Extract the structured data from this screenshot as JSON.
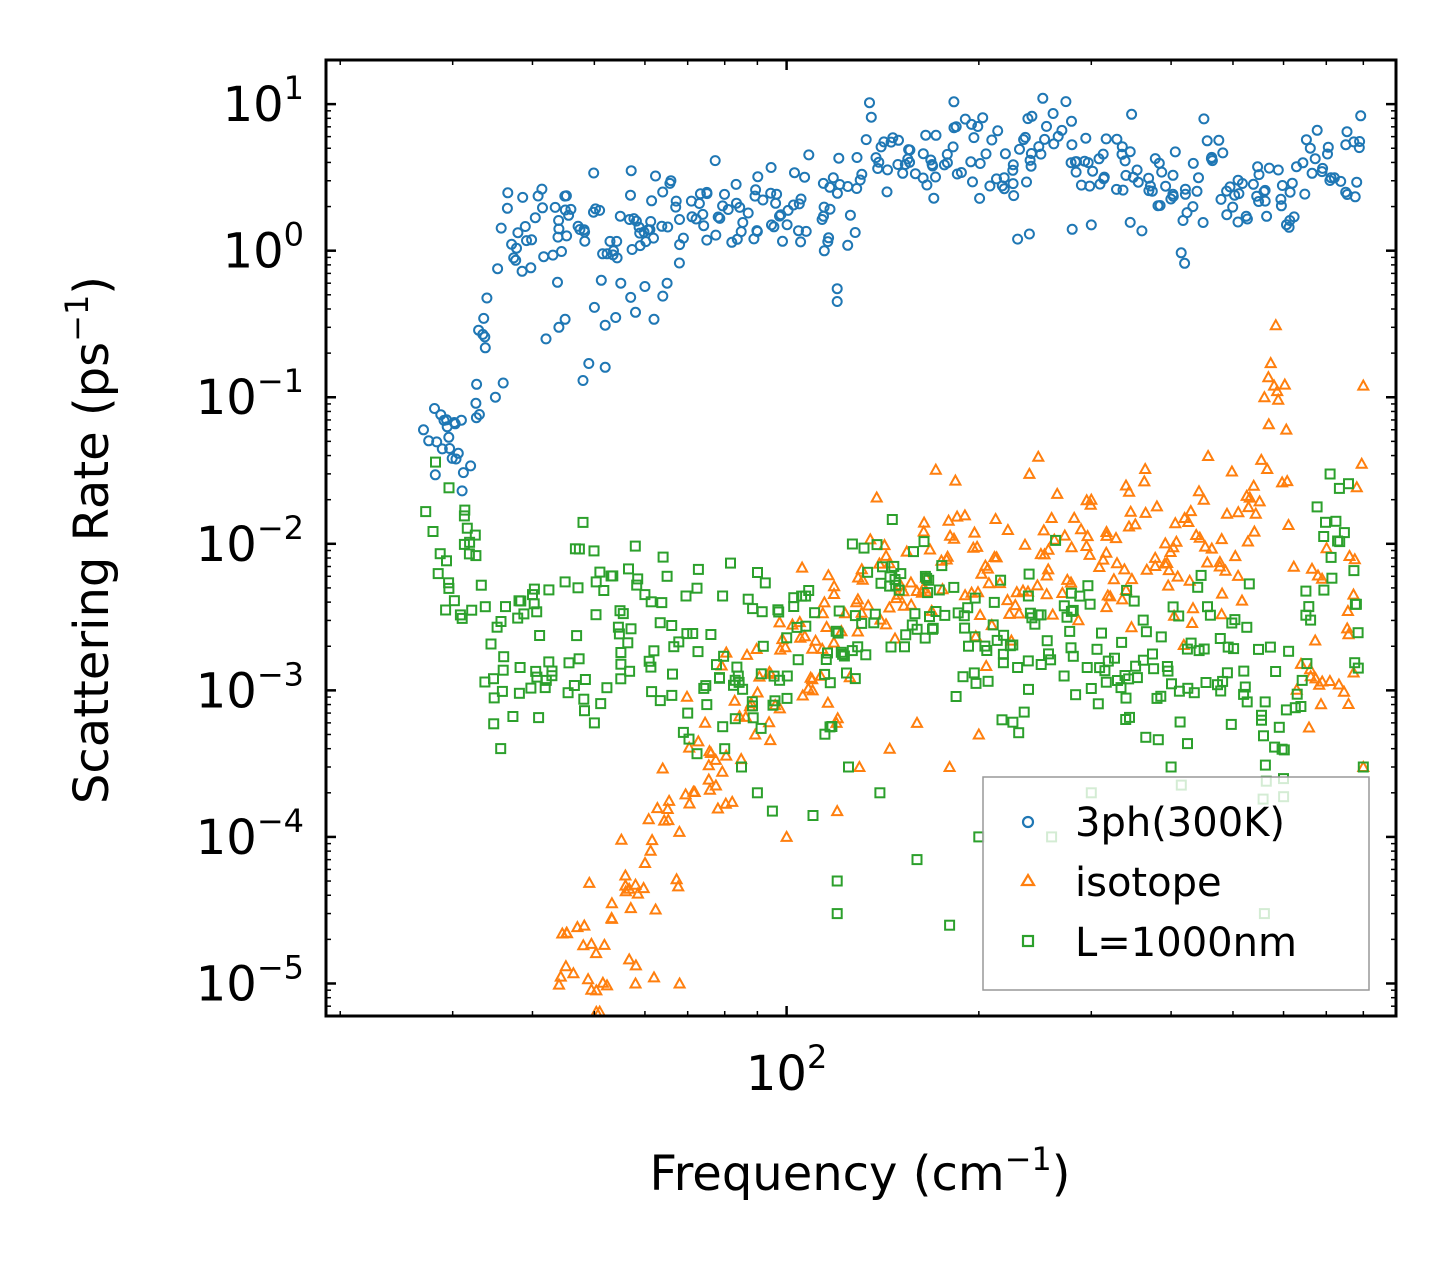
{
  "chart_data": {
    "type": "scatter",
    "xscale": "log",
    "yscale": "log",
    "xlim": [
      19,
      900
    ],
    "ylim": [
      6e-06,
      20
    ],
    "xlabel": "Frequency (cm",
    "xlabel_sup": "−1",
    "xlabel_end": ")",
    "ylabel": "Scattering Rate (ps",
    "ylabel_sup": "−1",
    "ylabel_end": ")",
    "x_major_ticks": [
      {
        "value": 100,
        "base": "10",
        "exp": "2"
      }
    ],
    "y_major_ticks": [
      {
        "value": 10,
        "base": "10",
        "exp": "1"
      },
      {
        "value": 1,
        "base": "10",
        "exp": "0"
      },
      {
        "value": 0.1,
        "base": "10",
        "exp": "−1"
      },
      {
        "value": 0.01,
        "base": "10",
        "exp": "−2"
      },
      {
        "value": 0.001,
        "base": "10",
        "exp": "−3"
      },
      {
        "value": 0.0001,
        "base": "10",
        "exp": "−4"
      },
      {
        "value": 1e-05,
        "base": "10",
        "exp": "−5"
      }
    ],
    "legend_position": "lower-right",
    "series": [
      {
        "name": "3ph(300K)",
        "marker": "circle",
        "color": "#1f77b4",
        "keypoints": [
          [
            27,
            0.058
          ],
          [
            32,
            0.04
          ],
          [
            35,
            1.3
          ],
          [
            38,
            1.3
          ],
          [
            40,
            1.35
          ],
          [
            45,
            1.4
          ],
          [
            50,
            1.45
          ],
          [
            55,
            1.55
          ],
          [
            60,
            1.6
          ],
          [
            65,
            1.75
          ],
          [
            70,
            1.8
          ],
          [
            75,
            1.75
          ],
          [
            80,
            1.7
          ],
          [
            85,
            1.6
          ],
          [
            90,
            1.8
          ],
          [
            95,
            2.0
          ],
          [
            100,
            2.3
          ],
          [
            105,
            2.5
          ],
          [
            110,
            2.8
          ],
          [
            115,
            2.3
          ],
          [
            120,
            1.9
          ],
          [
            125,
            2.4
          ],
          [
            130,
            3.5
          ],
          [
            135,
            4.8
          ],
          [
            140,
            4.6
          ],
          [
            150,
            4.2
          ],
          [
            160,
            3.8
          ],
          [
            170,
            4.2
          ],
          [
            180,
            4.6
          ],
          [
            190,
            4.9
          ],
          [
            200,
            5.3
          ],
          [
            210,
            4.6
          ],
          [
            220,
            3.8
          ],
          [
            230,
            3.5
          ],
          [
            240,
            5.5
          ],
          [
            250,
            8.0
          ],
          [
            260,
            7.5
          ],
          [
            270,
            6.0
          ],
          [
            280,
            5.0
          ],
          [
            290,
            4.4
          ],
          [
            300,
            4.0
          ],
          [
            320,
            3.6
          ],
          [
            340,
            3.3
          ],
          [
            360,
            3.0
          ],
          [
            380,
            2.8
          ],
          [
            400,
            2.6
          ],
          [
            420,
            2.4
          ],
          [
            430,
            1.8
          ],
          [
            450,
            4.2
          ],
          [
            470,
            4.0
          ],
          [
            490,
            3.0
          ],
          [
            510,
            2.8
          ],
          [
            530,
            2.5
          ],
          [
            560,
            2.3
          ],
          [
            600,
            2.6
          ],
          [
            640,
            3.0
          ],
          [
            680,
            3.4
          ],
          [
            720,
            3.6
          ],
          [
            760,
            3.7
          ],
          [
            800,
            7.0
          ]
        ],
        "outliers": [
          [
            27,
            0.06
          ],
          [
            32,
            0.034
          ],
          [
            35,
            0.1
          ],
          [
            36,
            0.125
          ],
          [
            42,
            0.25
          ],
          [
            44,
            0.3
          ],
          [
            45,
            0.34
          ],
          [
            48,
            0.13
          ],
          [
            49,
            0.17
          ],
          [
            50,
            0.41
          ],
          [
            52,
            0.31
          ],
          [
            52,
            0.16
          ],
          [
            54,
            0.35
          ],
          [
            55,
            0.6
          ],
          [
            57,
            0.48
          ],
          [
            58,
            0.38
          ],
          [
            60,
            0.57
          ],
          [
            62,
            0.34
          ],
          [
            64,
            0.49
          ],
          [
            65,
            0.6
          ],
          [
            68,
            1.1
          ],
          [
            75,
            2.5
          ],
          [
            120,
            0.45
          ],
          [
            120,
            0.55
          ],
          [
            230,
            1.2
          ],
          [
            240,
            1.3
          ],
          [
            280,
            1.4
          ],
          [
            300,
            1.5
          ],
          [
            420,
            0.82
          ]
        ]
      },
      {
        "name": "isotope",
        "marker": "triangle",
        "color": "#ff7f0e",
        "keypoints": [
          [
            43,
            1.2e-05
          ],
          [
            47,
            1.3e-05
          ],
          [
            50,
            1.6e-05
          ],
          [
            53,
            2e-05
          ],
          [
            56,
            3e-05
          ],
          [
            60,
            5e-05
          ],
          [
            64,
            0.0001
          ],
          [
            68,
            0.00018
          ],
          [
            72,
            0.00026
          ],
          [
            76,
            0.00035
          ],
          [
            80,
            0.00045
          ],
          [
            85,
            0.0006
          ],
          [
            90,
            0.0008
          ],
          [
            95,
            0.0011
          ],
          [
            100,
            0.0015
          ],
          [
            110,
            0.002
          ],
          [
            118,
            0.0012
          ],
          [
            125,
            0.003
          ],
          [
            135,
            0.004
          ],
          [
            150,
            0.005
          ],
          [
            165,
            0.006
          ],
          [
            180,
            0.007
          ],
          [
            200,
            0.006
          ],
          [
            220,
            0.005
          ],
          [
            240,
            0.007
          ],
          [
            260,
            0.009
          ],
          [
            280,
            0.01
          ],
          [
            300,
            0.011
          ],
          [
            320,
            0.01
          ],
          [
            340,
            0.009
          ],
          [
            360,
            0.009
          ],
          [
            380,
            0.01
          ],
          [
            400,
            0.012
          ],
          [
            420,
            0.006
          ],
          [
            450,
            0.01
          ],
          [
            480,
            0.008
          ],
          [
            500,
            0.009
          ],
          [
            530,
            0.012
          ],
          [
            560,
            0.05
          ],
          [
            580,
            0.09
          ],
          [
            600,
            0.06
          ],
          [
            640,
            0.0018
          ],
          [
            680,
            0.0018
          ],
          [
            720,
            0.002
          ],
          [
            760,
            0.0015
          ],
          [
            800,
            0.06
          ]
        ],
        "outliers": [
          [
            58,
            1e-05
          ],
          [
            62,
            1.1e-05
          ],
          [
            68,
            1e-05
          ],
          [
            100,
            0.0001
          ],
          [
            120,
            0.00015
          ],
          [
            130,
            0.0003
          ],
          [
            145,
            0.0004
          ],
          [
            160,
            0.0006
          ],
          [
            180,
            0.0003
          ],
          [
            200,
            0.0005
          ],
          [
            240,
            0.03
          ],
          [
            260,
            0.015
          ],
          [
            300,
            0.02
          ],
          [
            340,
            0.025
          ],
          [
            380,
            0.018
          ],
          [
            420,
            0.015
          ],
          [
            450,
            0.02
          ],
          [
            560,
            0.1
          ],
          [
            580,
            0.12
          ],
          [
            800,
            0.12
          ],
          [
            800,
            0.0003
          ]
        ]
      },
      {
        "name": "L=1000nm",
        "marker": "square",
        "color": "#2ca02c",
        "keypoints": [
          [
            27,
            0.0072
          ],
          [
            32,
            0.0095
          ],
          [
            35,
            0.0015
          ],
          [
            38,
            0.0015
          ],
          [
            40,
            0.002
          ],
          [
            45,
            0.0025
          ],
          [
            50,
            0.003
          ],
          [
            55,
            0.0028
          ],
          [
            60,
            0.002
          ],
          [
            65,
            0.0025
          ],
          [
            70,
            0.002
          ],
          [
            75,
            0.0018
          ],
          [
            80,
            0.0015
          ],
          [
            85,
            0.0016
          ],
          [
            90,
            0.0018
          ],
          [
            95,
            0.0019
          ],
          [
            100,
            0.0025
          ],
          [
            110,
            0.0032
          ],
          [
            118,
            0.0015
          ],
          [
            125,
            0.0035
          ],
          [
            135,
            0.0045
          ],
          [
            150,
            0.0045
          ],
          [
            165,
            0.0035
          ],
          [
            180,
            0.0028
          ],
          [
            200,
            0.0025
          ],
          [
            220,
            0.002
          ],
          [
            240,
            0.0022
          ],
          [
            260,
            0.0028
          ],
          [
            280,
            0.0025
          ],
          [
            300,
            0.002
          ],
          [
            320,
            0.0018
          ],
          [
            340,
            0.0016
          ],
          [
            360,
            0.0015
          ],
          [
            380,
            0.0012
          ],
          [
            400,
            0.0012
          ],
          [
            420,
            0.0009
          ],
          [
            450,
            0.0025
          ],
          [
            480,
            0.002
          ],
          [
            500,
            0.0015
          ],
          [
            530,
            0.0011
          ],
          [
            560,
            0.0007
          ],
          [
            580,
            0.0009
          ],
          [
            600,
            0.0004
          ],
          [
            640,
            0.0012
          ],
          [
            680,
            0.0085
          ],
          [
            720,
            0.013
          ],
          [
            760,
            0.014
          ],
          [
            800,
            0.0012
          ]
        ],
        "outliers": [
          [
            40,
            0.0045
          ],
          [
            45,
            0.0055
          ],
          [
            48,
            0.014
          ],
          [
            50,
            0.0006
          ],
          [
            55,
            0.0012
          ],
          [
            60,
            0.0045
          ],
          [
            65,
            0.006
          ],
          [
            70,
            0.0007
          ],
          [
            75,
            0.0008
          ],
          [
            80,
            0.0004
          ],
          [
            85,
            0.0003
          ],
          [
            90,
            0.0002
          ],
          [
            95,
            0.00015
          ],
          [
            110,
            0.00014
          ],
          [
            120,
            5e-05
          ],
          [
            120,
            3e-05
          ],
          [
            125,
            0.0003
          ],
          [
            140,
            0.0002
          ],
          [
            160,
            7e-05
          ],
          [
            180,
            2.5e-05
          ],
          [
            200,
            0.0001
          ],
          [
            260,
            0.0001
          ],
          [
            300,
            0.0002
          ],
          [
            400,
            0.0003
          ],
          [
            560,
            3e-05
          ],
          [
            600,
            0.00025
          ],
          [
            800,
            0.0003
          ]
        ]
      }
    ]
  }
}
